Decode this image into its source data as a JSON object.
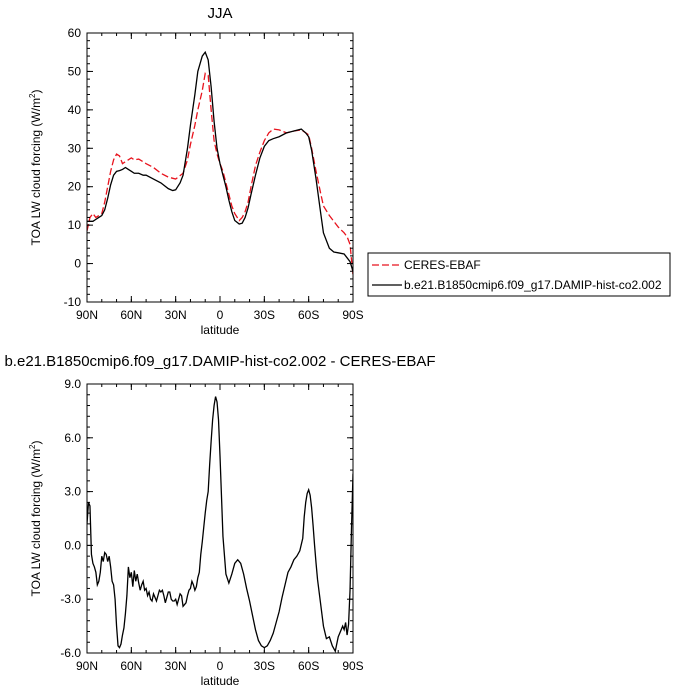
{
  "chart_data": [
    {
      "type": "line",
      "title": "JJA",
      "xlabel": "latitude",
      "ylabel": "TOA LW cloud forcing (W/m",
      "ylabel_sup": "2",
      "ylabel_close": ")",
      "xlim": [
        90,
        -90
      ],
      "ylim": [
        -10,
        60
      ],
      "xticks": [
        90,
        60,
        30,
        0,
        -30,
        -60,
        -90
      ],
      "xtick_labels": [
        "90N",
        "60N",
        "30N",
        "0",
        "30S",
        "60S",
        "90S"
      ],
      "yticks": [
        -10,
        0,
        10,
        20,
        30,
        40,
        50,
        60
      ],
      "ytick_labels": [
        "-10",
        "0",
        "10",
        "20",
        "30",
        "40",
        "50",
        "60"
      ],
      "grid": false,
      "legend": "right",
      "series": [
        {
          "name": "CERES-EBAF",
          "color": "#e8131d",
          "dash": "dashed",
          "x": [
            90,
            88,
            86,
            84,
            82,
            80,
            78,
            76,
            74,
            72,
            70,
            68,
            66,
            64,
            62,
            60,
            58,
            55,
            52,
            50,
            45,
            40,
            35,
            30,
            25,
            22,
            20,
            17,
            15,
            12,
            10,
            8,
            6,
            4,
            2,
            0,
            -2,
            -4,
            -6,
            -8,
            -10,
            -13,
            -15,
            -17,
            -19,
            -21,
            -24,
            -27,
            -30,
            -33,
            -36,
            -40,
            -45,
            -50,
            -55,
            -60,
            -62,
            -65,
            -68,
            -70,
            -74,
            -77,
            -80,
            -84,
            -86,
            -88,
            -90
          ],
          "y": [
            8.5,
            12,
            13,
            12,
            12.5,
            13,
            16,
            20,
            24,
            27,
            28.5,
            28,
            26,
            26.5,
            27,
            27.5,
            27,
            27.2,
            26.5,
            26,
            25,
            23.5,
            22.5,
            22,
            23.5,
            27,
            31,
            36,
            40,
            45,
            49.5,
            49,
            40,
            32,
            28.5,
            26,
            24,
            21,
            18,
            15,
            13,
            11.2,
            12,
            13.5,
            16,
            20,
            25.5,
            29,
            32,
            34,
            35,
            34.8,
            34,
            34.5,
            34.8,
            33.5,
            30,
            24,
            18.5,
            15,
            12.5,
            11,
            9.5,
            8,
            7,
            5,
            -3
          ]
        },
        {
          "name": "b.e21.B1850cmip6.f09_g17.DAMIP-hist-co2.002",
          "color": "#000000",
          "dash": "solid",
          "x": [
            90,
            88,
            86,
            84,
            82,
            80,
            78,
            76,
            74,
            72,
            70,
            68,
            66,
            64,
            62,
            60,
            58,
            55,
            52,
            50,
            45,
            40,
            35,
            32,
            30,
            27,
            25,
            22,
            20,
            17,
            15,
            12,
            10,
            8,
            6,
            4,
            2,
            0,
            -2,
            -4,
            -6,
            -8,
            -10,
            -13,
            -15,
            -17,
            -19,
            -21,
            -24,
            -27,
            -30,
            -33,
            -36,
            -40,
            -45,
            -50,
            -55,
            -58,
            -60,
            -62,
            -65,
            -68,
            -70,
            -74,
            -77,
            -80,
            -84,
            -86,
            -88,
            -90
          ],
          "y": [
            11,
            11,
            11,
            11.5,
            12,
            12.5,
            14,
            17,
            20.5,
            23,
            24,
            24.2,
            24.5,
            25,
            24.5,
            24,
            23.5,
            23.5,
            23,
            23,
            22,
            21,
            19.5,
            19,
            19.2,
            21,
            23,
            30,
            36,
            44,
            50,
            54,
            55,
            53,
            46,
            37,
            30,
            26,
            23,
            20,
            16.5,
            13.5,
            11.2,
            10.3,
            10.5,
            12,
            14.5,
            18,
            23,
            27.5,
            30.5,
            32,
            32.5,
            33,
            34,
            34.5,
            35,
            34,
            33,
            29.5,
            22,
            13.5,
            8,
            4,
            3,
            2.8,
            2.5,
            1.5,
            0.5,
            -2
          ]
        }
      ]
    },
    {
      "type": "line",
      "title": "b.e21.B1850cmip6.f09_g17.DAMIP-hist-co2.002 - CERES-EBAF",
      "xlabel": "latitude",
      "ylabel": "TOA LW cloud forcing (W/m",
      "ylabel_sup": "2",
      "ylabel_close": ")",
      "xlim": [
        90,
        -90
      ],
      "ylim": [
        -6,
        9
      ],
      "xticks": [
        90,
        60,
        30,
        0,
        -30,
        -60,
        -90
      ],
      "xtick_labels": [
        "90N",
        "60N",
        "30N",
        "0",
        "30S",
        "60S",
        "90S"
      ],
      "yticks": [
        -6,
        -3,
        0,
        3,
        6,
        9
      ],
      "ytick_labels": [
        "-6.0",
        "-3.0",
        "0.0",
        "3.0",
        "6.0",
        "9.0"
      ],
      "grid": false,
      "series": [
        {
          "color": "#000000",
          "dash": "solid",
          "x": [
            90,
            89,
            88,
            87,
            86,
            85,
            84,
            83,
            82,
            81,
            80,
            79,
            78,
            77,
            76,
            75,
            74,
            73,
            72,
            71,
            70,
            69,
            68,
            67,
            66,
            65,
            64,
            63,
            62,
            61,
            60,
            59,
            58,
            57,
            56,
            55,
            54,
            53,
            52,
            51,
            50,
            49,
            48,
            47,
            46,
            45,
            44,
            43,
            42,
            41,
            40,
            39,
            38,
            37,
            36,
            35,
            34,
            33,
            32,
            31,
            30,
            29,
            28,
            27,
            26,
            25,
            24,
            23,
            22,
            21,
            20,
            19,
            18,
            17,
            16,
            15,
            14,
            13,
            12,
            11,
            10,
            9,
            8,
            7,
            6,
            5,
            4,
            3,
            2,
            1,
            0,
            -2,
            -4,
            -6,
            -8,
            -10,
            -12,
            -14,
            -16,
            -18,
            -20,
            -22,
            -24,
            -26,
            -28,
            -30,
            -32,
            -34,
            -36,
            -38,
            -40,
            -42,
            -44,
            -46,
            -48,
            -50,
            -52,
            -54,
            -56,
            -57,
            -58,
            -59,
            -60,
            -61,
            -62,
            -63,
            -64,
            -65,
            -66,
            -68,
            -70,
            -72,
            -74,
            -76,
            -78,
            -80,
            -82,
            -83,
            -84,
            -85,
            -86,
            -87,
            -88,
            -89,
            -90
          ],
          "y": [
            1.2,
            2.4,
            2.2,
            -0.5,
            -1.0,
            -1.2,
            -1.5,
            -2.2,
            -2.0,
            -1.5,
            -0.6,
            -0.9,
            -0.4,
            -0.5,
            -0.9,
            -0.6,
            -1.2,
            -2.0,
            -2.2,
            -3.0,
            -4.5,
            -5.6,
            -5.7,
            -5.5,
            -5.0,
            -4.6,
            -3.8,
            -2.8,
            -1.2,
            -1.8,
            -1.5,
            -2.3,
            -1.4,
            -2.0,
            -1.6,
            -2.1,
            -2.5,
            -2.2,
            -2.0,
            -2.5,
            -2.4,
            -2.8,
            -2.6,
            -3.0,
            -3.1,
            -2.7,
            -2.9,
            -3.1,
            -2.8,
            -2.5,
            -2.6,
            -2.5,
            -2.8,
            -3.2,
            -2.9,
            -2.6,
            -2.6,
            -3.0,
            -3.1,
            -3.1,
            -3.0,
            -3.3,
            -3.0,
            -2.7,
            -2.8,
            -3.4,
            -3.3,
            -3.2,
            -2.8,
            -2.5,
            -2.4,
            -2.0,
            -2.2,
            -2.5,
            -2.3,
            -1.8,
            -1.5,
            -0.5,
            0.2,
            1.0,
            1.8,
            2.5,
            3.0,
            4.5,
            5.8,
            7.0,
            7.8,
            8.3,
            8.0,
            7.0,
            5.0,
            0.5,
            -1.6,
            -2.1,
            -1.6,
            -1.0,
            -0.8,
            -1.0,
            -1.6,
            -2.4,
            -3.1,
            -3.9,
            -4.7,
            -5.3,
            -5.6,
            -5.7,
            -5.6,
            -5.3,
            -4.9,
            -4.3,
            -3.7,
            -2.9,
            -2.2,
            -1.5,
            -1.2,
            -0.8,
            -0.6,
            -0.3,
            0.4,
            1.6,
            2.4,
            2.9,
            3.1,
            2.8,
            2.1,
            1.1,
            0.0,
            -1.0,
            -1.9,
            -3.2,
            -4.5,
            -5.2,
            -5.1,
            -5.6,
            -5.9,
            -5.1,
            -4.7,
            -4.5,
            -4.7,
            -4.3,
            -5.0,
            -4.4,
            -2.5,
            1.0,
            4.0
          ]
        }
      ]
    }
  ]
}
